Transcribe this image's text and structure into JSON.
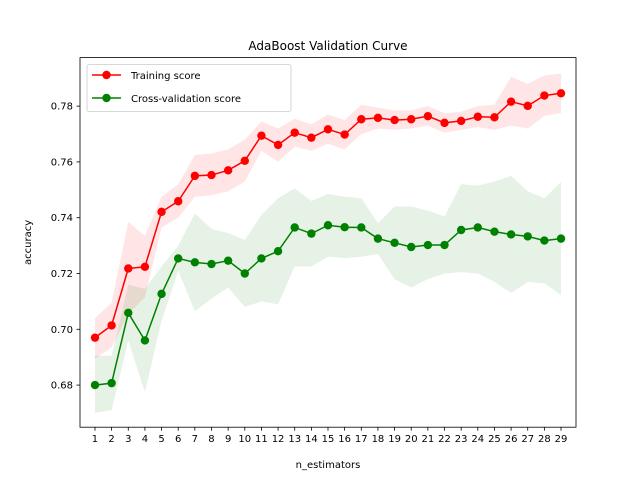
{
  "chart_data": {
    "type": "line",
    "title": "AdaBoost Validation Curve",
    "xlabel": "n_estimators",
    "ylabel": "accuracy",
    "x": [
      1,
      2,
      3,
      4,
      5,
      6,
      7,
      8,
      9,
      10,
      11,
      12,
      13,
      14,
      15,
      16,
      17,
      18,
      19,
      20,
      21,
      22,
      23,
      24,
      25,
      26,
      27,
      28,
      29
    ],
    "xlim": [
      0.1,
      29.9
    ],
    "ylim": [
      0.6649,
      0.7974
    ],
    "yticks": [
      0.68,
      0.7,
      0.72,
      0.74,
      0.76,
      0.78
    ],
    "ytick_labels": [
      "0.68",
      "0.70",
      "0.72",
      "0.74",
      "0.76",
      "0.78"
    ],
    "legend_position": "top-left",
    "grid": false,
    "series": [
      {
        "name": "Training score",
        "color": "#ff0000",
        "marker": "circle",
        "values": [
          0.697,
          0.7014,
          0.7218,
          0.7224,
          0.7421,
          0.7459,
          0.755,
          0.7553,
          0.757,
          0.7604,
          0.7694,
          0.7661,
          0.7705,
          0.7687,
          0.7717,
          0.7698,
          0.7753,
          0.7758,
          0.775,
          0.7753,
          0.7764,
          0.774,
          0.7747,
          0.7762,
          0.776,
          0.7816,
          0.7801,
          0.7838,
          0.7846
        ],
        "lower": [
          0.6895,
          0.6935,
          0.7055,
          0.7115,
          0.7365,
          0.74,
          0.7475,
          0.748,
          0.7495,
          0.753,
          0.764,
          0.76,
          0.7655,
          0.764,
          0.7665,
          0.7645,
          0.77,
          0.772,
          0.7715,
          0.772,
          0.773,
          0.7705,
          0.7715,
          0.7725,
          0.7715,
          0.773,
          0.772,
          0.7765,
          0.7775
        ],
        "upper": [
          0.704,
          0.7095,
          0.7385,
          0.7335,
          0.7475,
          0.752,
          0.7625,
          0.763,
          0.7645,
          0.768,
          0.7745,
          0.772,
          0.7755,
          0.7735,
          0.777,
          0.775,
          0.7805,
          0.7795,
          0.7785,
          0.7785,
          0.78,
          0.7775,
          0.778,
          0.78,
          0.7805,
          0.7905,
          0.788,
          0.791,
          0.7917
        ]
      },
      {
        "name": "Cross-validation score",
        "color": "#008000",
        "marker": "circle",
        "values": [
          0.68,
          0.6807,
          0.7059,
          0.696,
          0.7127,
          0.7254,
          0.724,
          0.7234,
          0.7246,
          0.72,
          0.7254,
          0.728,
          0.7365,
          0.7343,
          0.7373,
          0.7366,
          0.7365,
          0.7325,
          0.731,
          0.7295,
          0.7302,
          0.7302,
          0.7356,
          0.7365,
          0.735,
          0.734,
          0.7333,
          0.7318,
          0.7325
        ],
        "lower": [
          0.67,
          0.671,
          0.696,
          0.6775,
          0.703,
          0.721,
          0.7065,
          0.711,
          0.715,
          0.708,
          0.71,
          0.709,
          0.7225,
          0.7225,
          0.726,
          0.7255,
          0.726,
          0.727,
          0.718,
          0.715,
          0.718,
          0.72,
          0.7205,
          0.72,
          0.717,
          0.713,
          0.717,
          0.7165,
          0.7122
        ],
        "upper": [
          0.6905,
          0.6905,
          0.716,
          0.7145,
          0.7225,
          0.73,
          0.7415,
          0.736,
          0.7345,
          0.732,
          0.741,
          0.747,
          0.7505,
          0.746,
          0.7485,
          0.7475,
          0.747,
          0.738,
          0.744,
          0.744,
          0.7425,
          0.7405,
          0.752,
          0.7515,
          0.753,
          0.755,
          0.7495,
          0.747,
          0.7528
        ]
      }
    ]
  }
}
